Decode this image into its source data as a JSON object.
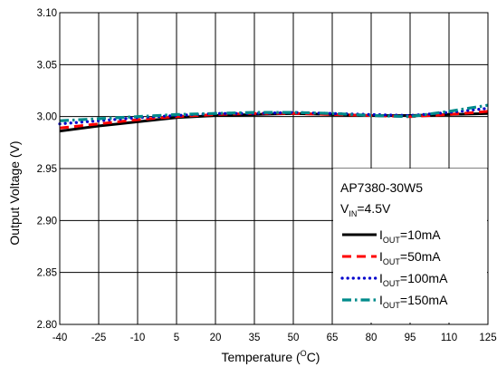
{
  "chart_data": {
    "type": "line",
    "xlabel": {
      "main": "Temperature (",
      "sup": "O",
      "tail": "C)"
    },
    "ylabel": "Output Voltage (V)",
    "xlim": [
      -40,
      125
    ],
    "ylim": [
      2.8,
      3.1
    ],
    "x_ticks": [
      "-40",
      "-25",
      "-10",
      "5",
      "20",
      "35",
      "50",
      "65",
      "80",
      "95",
      "110",
      "125"
    ],
    "y_ticks": [
      "2.80",
      "2.85",
      "2.90",
      "2.95",
      "3.00",
      "3.05",
      "3.10"
    ],
    "grid": true,
    "legend_title": "AP7380-30W5",
    "legend_subtitle": {
      "main": "V",
      "sub": "IN",
      "tail": "=4.5V"
    },
    "legend_position": "bottom-right",
    "series": [
      {
        "name": "I_OUT=10mA",
        "label_main": "I",
        "label_sub": "OUT",
        "label_tail": "=10mA",
        "color": "#000000",
        "style": "solid",
        "x": [
          -40,
          -25,
          -10,
          5,
          20,
          35,
          50,
          65,
          80,
          95,
          110,
          125
        ],
        "y": [
          2.986,
          2.991,
          2.995,
          2.999,
          3.001,
          3.002,
          3.003,
          3.002,
          3.001,
          3.001,
          3.002,
          3.003
        ]
      },
      {
        "name": "I_OUT=50mA",
        "label_main": "I",
        "label_sub": "OUT",
        "label_tail": "=50mA",
        "color": "#ff0000",
        "style": "dash",
        "x": [
          -40,
          -25,
          -10,
          5,
          20,
          35,
          50,
          65,
          80,
          95,
          110,
          125
        ],
        "y": [
          2.989,
          2.993,
          2.997,
          3.0,
          3.002,
          3.003,
          3.003,
          3.002,
          3.001,
          3.0,
          3.002,
          3.005
        ]
      },
      {
        "name": "I_OUT=100mA",
        "label_main": "I",
        "label_sub": "OUT",
        "label_tail": "=100mA",
        "color": "#0000cc",
        "style": "dot",
        "x": [
          -40,
          -25,
          -10,
          5,
          20,
          35,
          50,
          65,
          80,
          95,
          110,
          125
        ],
        "y": [
          2.993,
          2.996,
          2.999,
          3.001,
          3.003,
          3.003,
          3.004,
          3.003,
          3.002,
          3.001,
          3.004,
          3.008
        ]
      },
      {
        "name": "I_OUT=150mA",
        "label_main": "I",
        "label_sub": "OUT",
        "label_tail": "=150mA",
        "color": "#008b8b",
        "style": "dashdot",
        "x": [
          -40,
          -25,
          -10,
          5,
          20,
          35,
          50,
          65,
          80,
          95,
          110,
          125
        ],
        "y": [
          2.996,
          2.998,
          3.0,
          3.002,
          3.003,
          3.004,
          3.004,
          3.003,
          3.001,
          3.0,
          3.005,
          3.011
        ]
      }
    ]
  }
}
